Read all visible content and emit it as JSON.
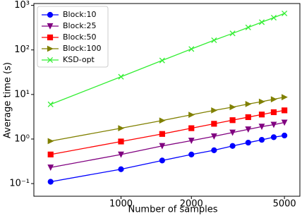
{
  "chart_data": {
    "type": "line",
    "xlabel": "Number of samples",
    "ylabel": "Average time (s)",
    "xscale": "log",
    "yscale": "log",
    "xlim": [
      424,
      5821
    ],
    "ylim": [
      0.052,
      1100
    ],
    "xticks": [
      1000,
      2000,
      5000
    ],
    "yticks": [
      {
        "value": 0.1,
        "label": "10⁻¹"
      },
      {
        "value": 1,
        "label": "10⁰"
      },
      {
        "value": 10,
        "label": "10¹"
      },
      {
        "value": 100,
        "label": "10²"
      },
      {
        "value": 1000,
        "label": "10³"
      }
    ],
    "legend": "upper left",
    "x": [
      500,
      1000,
      1500,
      2000,
      2500,
      3000,
      3500,
      4000,
      4500,
      5000
    ],
    "series": [
      {
        "name": "Block:10",
        "color": "#0000ff",
        "marker": "circle",
        "values": [
          0.11,
          0.21,
          0.33,
          0.45,
          0.56,
          0.7,
          0.83,
          0.96,
          1.1,
          1.2
        ]
      },
      {
        "name": "Block:25",
        "color": "#800080",
        "marker": "triangle-down",
        "values": [
          0.23,
          0.45,
          0.7,
          0.92,
          1.15,
          1.4,
          1.65,
          1.9,
          2.1,
          2.35
        ]
      },
      {
        "name": "Block:50",
        "color": "#ff0000",
        "marker": "square",
        "values": [
          0.45,
          0.88,
          1.3,
          1.75,
          2.2,
          2.65,
          3.1,
          3.55,
          4.0,
          4.4
        ]
      },
      {
        "name": "Block:100",
        "color": "#808000",
        "marker": "triangle-right",
        "values": [
          0.9,
          1.75,
          2.6,
          3.5,
          4.4,
          5.2,
          6.1,
          6.9,
          7.8,
          8.7
        ]
      },
      {
        "name": "KSD-opt",
        "color": "#33ee33",
        "marker": "x",
        "values": [
          6,
          25,
          58,
          105,
          165,
          235,
          320,
          420,
          530,
          660
        ]
      }
    ]
  }
}
